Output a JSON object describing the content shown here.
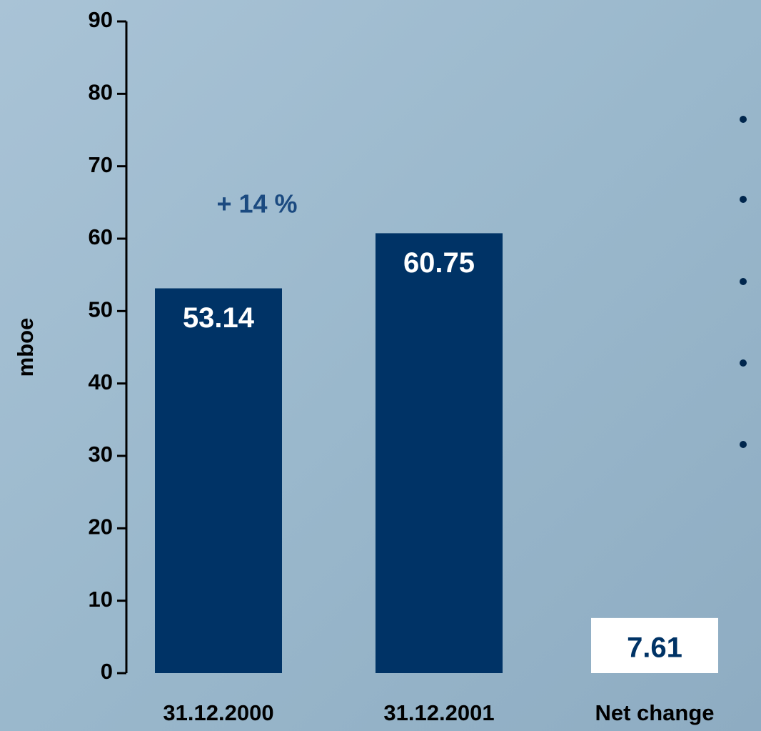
{
  "chart_data": {
    "type": "bar",
    "y_label": "mboe",
    "categories": [
      "31.12.2000",
      "31.12.2001",
      "Net change"
    ],
    "values": [
      53.14,
      60.75,
      7.61
    ],
    "colors": [
      "#003366",
      "#003366",
      "#ffffff"
    ],
    "value_label_colors": [
      "#ffffff",
      "#ffffff",
      "#003366"
    ],
    "annotation": "+ 14 %",
    "ylim": [
      0,
      90
    ],
    "yticks": [
      0,
      10,
      20,
      30,
      40,
      50,
      60,
      70,
      80,
      90
    ]
  }
}
